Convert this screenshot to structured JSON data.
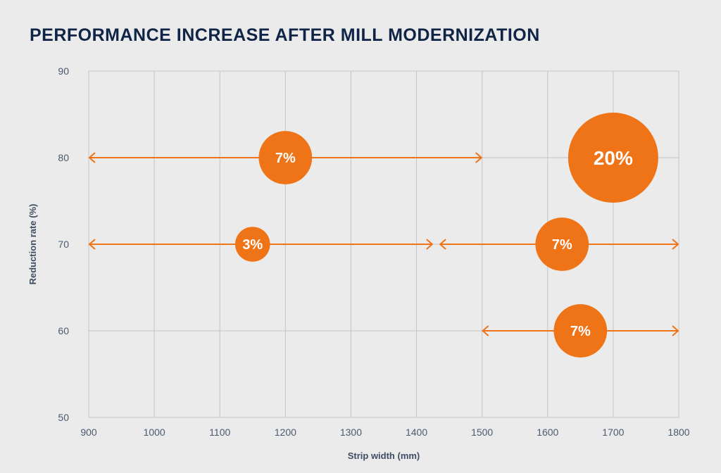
{
  "colors": {
    "background": "#ebebeb",
    "title": "#0f2446",
    "accent": "#ee7417",
    "grid": "#c4c4c4",
    "tick_text": "#4a5a70",
    "bubble_text": "#ffffff"
  },
  "chart_data": {
    "type": "bubble",
    "title": "PERFORMANCE INCREASE AFTER MILL MODERNIZATION",
    "xlabel": "Strip width (mm)",
    "ylabel": "Reduction rate (%)",
    "xlim": [
      900,
      1800
    ],
    "ylim": [
      50,
      90
    ],
    "xticks": [
      "900",
      "1000",
      "1100",
      "1200",
      "1300",
      "1400",
      "1500",
      "1600",
      "1700",
      "1800"
    ],
    "yticks": [
      "50",
      "60",
      "70",
      "80",
      "90"
    ],
    "grid": true,
    "ranges": [
      {
        "y": 80,
        "x_start": 900,
        "x_end": 1500
      },
      {
        "y": 70,
        "x_start": 900,
        "x_end": 1425
      },
      {
        "y": 70,
        "x_start": 1435,
        "x_end": 1800
      },
      {
        "y": 60,
        "x_start": 1500,
        "x_end": 1800
      }
    ],
    "points": [
      {
        "x": 1200,
        "y": 80,
        "value": 7,
        "label": "7%"
      },
      {
        "x": 1700,
        "y": 80,
        "value": 20,
        "label": "20%"
      },
      {
        "x": 1150,
        "y": 70,
        "value": 3,
        "label": "3%"
      },
      {
        "x": 1622,
        "y": 70,
        "value": 7,
        "label": "7%"
      },
      {
        "x": 1650,
        "y": 60,
        "value": 7,
        "label": "7%"
      }
    ]
  }
}
